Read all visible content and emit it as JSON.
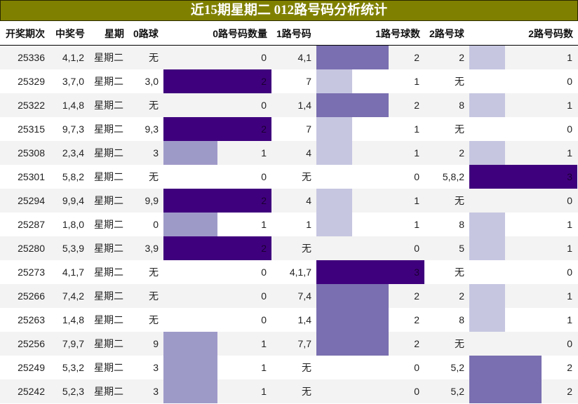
{
  "title": "近15期星期二 012路号码分析统计",
  "colors": {
    "title_bg": "#808000",
    "title_text": "#ffffff",
    "bar_scale": {
      "1_of_2": "#9e9ac8",
      "2_of_2": "#3f007d",
      "1_of_3": "#c6c6e1",
      "2_of_3": "#7a6fb0",
      "3_of_3": "#3f007d"
    },
    "row_stripe": "#f3f3f3"
  },
  "columns": [
    {
      "key": "period",
      "label": "开奖期次"
    },
    {
      "key": "numbers",
      "label": "中奖号"
    },
    {
      "key": "weekday",
      "label": "星期"
    },
    {
      "key": "road0_balls",
      "label": "0路球"
    },
    {
      "key": "road0_count",
      "label": "0路号码数量"
    },
    {
      "key": "road1_balls",
      "label": "1路号码"
    },
    {
      "key": "road1_count",
      "label": "1路号球数"
    },
    {
      "key": "road2_balls",
      "label": "2路号球"
    },
    {
      "key": "road2_count",
      "label": "2路号码数"
    }
  ],
  "rows": [
    {
      "period": "25336",
      "numbers": "4,1,2",
      "weekday": "星期二",
      "road0_balls": "无",
      "road0_count": "0",
      "road1_balls": "4,1",
      "road1_count": "2",
      "road2_balls": "2",
      "road2_count": "1"
    },
    {
      "period": "25329",
      "numbers": "3,7,0",
      "weekday": "星期二",
      "road0_balls": "3,0",
      "road0_count": "2",
      "road1_balls": "7",
      "road1_count": "1",
      "road2_balls": "无",
      "road2_count": "0"
    },
    {
      "period": "25322",
      "numbers": "1,4,8",
      "weekday": "星期二",
      "road0_balls": "无",
      "road0_count": "0",
      "road1_balls": "1,4",
      "road1_count": "2",
      "road2_balls": "8",
      "road2_count": "1"
    },
    {
      "period": "25315",
      "numbers": "9,7,3",
      "weekday": "星期二",
      "road0_balls": "9,3",
      "road0_count": "2",
      "road1_balls": "7",
      "road1_count": "1",
      "road2_balls": "无",
      "road2_count": "0"
    },
    {
      "period": "25308",
      "numbers": "2,3,4",
      "weekday": "星期二",
      "road0_balls": "3",
      "road0_count": "1",
      "road1_balls": "4",
      "road1_count": "1",
      "road2_balls": "2",
      "road2_count": "1"
    },
    {
      "period": "25301",
      "numbers": "5,8,2",
      "weekday": "星期二",
      "road0_balls": "无",
      "road0_count": "0",
      "road1_balls": "无",
      "road1_count": "0",
      "road2_balls": "5,8,2",
      "road2_count": "3"
    },
    {
      "period": "25294",
      "numbers": "9,9,4",
      "weekday": "星期二",
      "road0_balls": "9,9",
      "road0_count": "2",
      "road1_balls": "4",
      "road1_count": "1",
      "road2_balls": "无",
      "road2_count": "0"
    },
    {
      "period": "25287",
      "numbers": "1,8,0",
      "weekday": "星期二",
      "road0_balls": "0",
      "road0_count": "1",
      "road1_balls": "1",
      "road1_count": "1",
      "road2_balls": "8",
      "road2_count": "1"
    },
    {
      "period": "25280",
      "numbers": "5,3,9",
      "weekday": "星期二",
      "road0_balls": "3,9",
      "road0_count": "2",
      "road1_balls": "无",
      "road1_count": "0",
      "road2_balls": "5",
      "road2_count": "1"
    },
    {
      "period": "25273",
      "numbers": "4,1,7",
      "weekday": "星期二",
      "road0_balls": "无",
      "road0_count": "0",
      "road1_balls": "4,1,7",
      "road1_count": "3",
      "road2_balls": "无",
      "road2_count": "0"
    },
    {
      "period": "25266",
      "numbers": "7,4,2",
      "weekday": "星期二",
      "road0_balls": "无",
      "road0_count": "0",
      "road1_balls": "7,4",
      "road1_count": "2",
      "road2_balls": "2",
      "road2_count": "1"
    },
    {
      "period": "25263",
      "numbers": "1,4,8",
      "weekday": "星期二",
      "road0_balls": "无",
      "road0_count": "0",
      "road1_balls": "1,4",
      "road1_count": "2",
      "road2_balls": "8",
      "road2_count": "1"
    },
    {
      "period": "25256",
      "numbers": "7,9,7",
      "weekday": "星期二",
      "road0_balls": "9",
      "road0_count": "1",
      "road1_balls": "7,7",
      "road1_count": "2",
      "road2_balls": "无",
      "road2_count": "0"
    },
    {
      "period": "25249",
      "numbers": "5,3,2",
      "weekday": "星期二",
      "road0_balls": "3",
      "road0_count": "1",
      "road1_balls": "无",
      "road1_count": "0",
      "road2_balls": "5,2",
      "road2_count": "2"
    },
    {
      "period": "25242",
      "numbers": "5,2,3",
      "weekday": "星期二",
      "road0_balls": "3",
      "road0_count": "1",
      "road1_balls": "无",
      "road1_count": "0",
      "road2_balls": "5,2",
      "road2_count": "2"
    }
  ]
}
